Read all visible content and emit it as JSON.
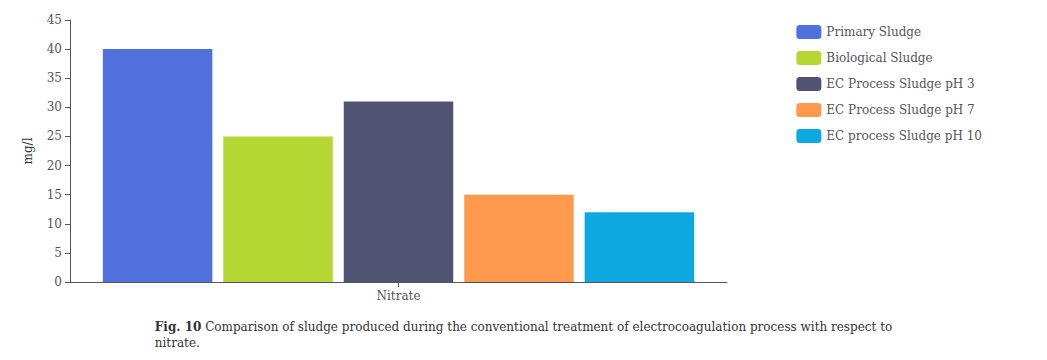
{
  "chart_data": {
    "type": "bar",
    "title": "Fig. 10",
    "annotations": [
      "Comparison of sludge produced during the conventional treatment of electrocoagulation process with respect to",
      "nitrate."
    ],
    "y_label": "mg/l",
    "categories": [
      "Nitrate"
    ],
    "series": [
      {
        "name": "Primary Sludge",
        "values": [
          40
        ]
      },
      {
        "name": "Biological Sludge",
        "values": [
          25
        ]
      },
      {
        "name": "EC Process Sludge pH 3",
        "values": [
          31
        ]
      },
      {
        "name": "EC Process Sludge pH 7",
        "values": [
          15
        ]
      },
      {
        "name": "EC process Sludge pH 10",
        "values": [
          12
        ]
      }
    ],
    "ylim": [
      0,
      45
    ],
    "yticks": [
      0,
      5,
      10,
      15,
      20,
      25,
      30,
      35,
      40,
      45
    ],
    "grid": false,
    "legend": "upper right"
  }
}
